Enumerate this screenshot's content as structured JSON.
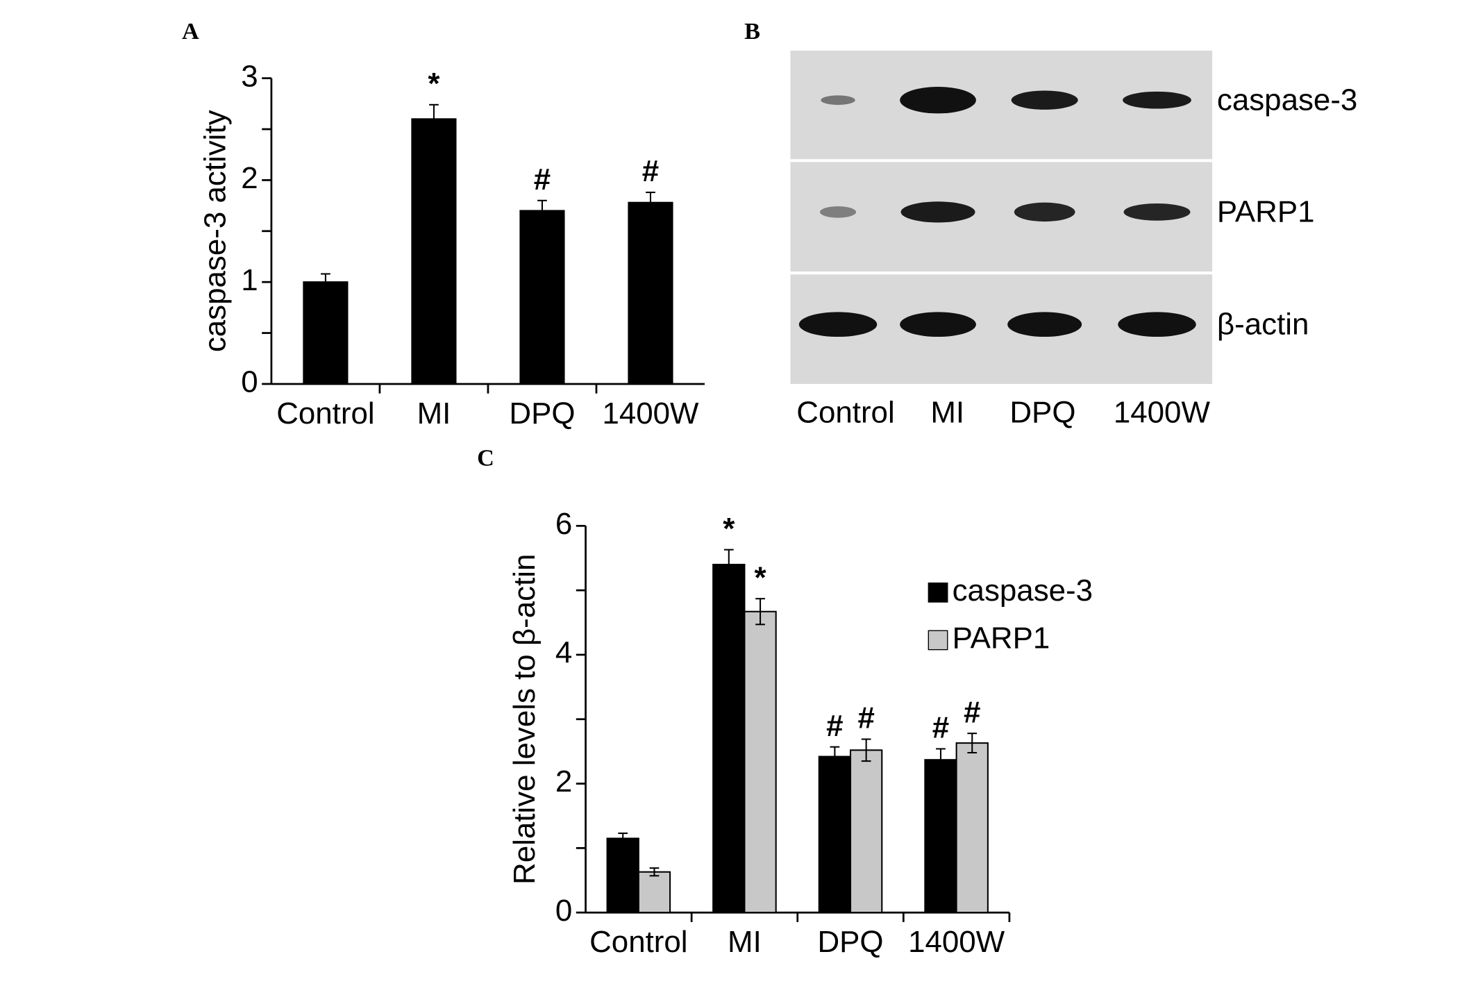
{
  "chart_data": [
    {
      "type": "bar",
      "label": "A",
      "y_label": "caspase-3 activity",
      "categories": [
        "Control",
        "MI",
        "DPQ",
        "1400W"
      ],
      "series": [
        {
          "color": "#000000",
          "values": [
            1.0,
            2.6,
            1.7,
            1.78
          ],
          "errors": [
            0.08,
            0.14,
            0.1,
            0.1
          ],
          "annotations": [
            null,
            "*",
            "#",
            "#"
          ]
        }
      ],
      "ylim": [
        0,
        3
      ],
      "yticks": [
        0,
        1,
        2,
        3
      ],
      "minor_yticks": [
        0.5,
        1.5,
        2.5
      ]
    },
    {
      "type": "bar",
      "label": "C",
      "y_label": "Relative levels to β-actin",
      "categories": [
        "Control",
        "MI",
        "DPQ",
        "1400W"
      ],
      "series": [
        {
          "name": "caspase-3",
          "color": "#000000",
          "values": [
            1.15,
            5.4,
            2.42,
            2.37
          ],
          "errors": [
            0.08,
            0.23,
            0.15,
            0.17
          ],
          "annotations": [
            null,
            "*",
            "#",
            "#"
          ]
        },
        {
          "name": "PARP1",
          "color": "#c8c8c8",
          "values": [
            0.63,
            4.67,
            2.52,
            2.63
          ],
          "errors": [
            0.06,
            0.2,
            0.17,
            0.15
          ],
          "annotations": [
            null,
            "*",
            "#",
            "#"
          ]
        }
      ],
      "ylim": [
        0,
        6
      ],
      "yticks": [
        0,
        2,
        4,
        6
      ],
      "minor_yticks": [
        1,
        3,
        5
      ],
      "legend": "upper right"
    }
  ],
  "panel_b": {
    "label": "B",
    "rows": [
      "caspase-3",
      "PARP1",
      "β-actin"
    ],
    "lanes": [
      "Control",
      "MI",
      "DPQ",
      "1400W"
    ]
  }
}
